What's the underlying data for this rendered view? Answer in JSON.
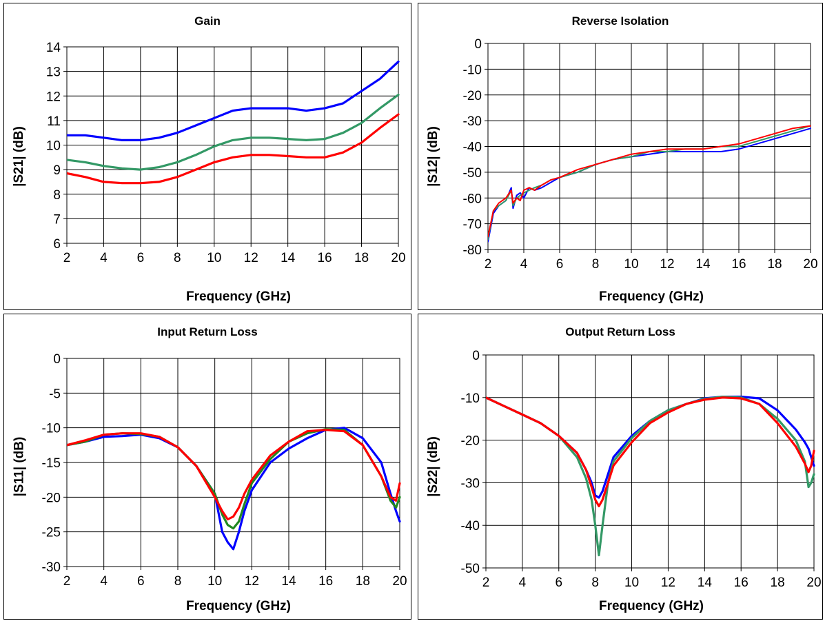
{
  "chart_data": [
    {
      "type": "line",
      "title": "Gain",
      "xlabel": "Frequency (GHz)",
      "ylabel": "|S21| (dB)",
      "xlim": [
        2,
        20
      ],
      "ylim": [
        6,
        14
      ],
      "xticks": [
        2,
        4,
        6,
        8,
        10,
        12,
        14,
        16,
        18,
        20
      ],
      "yticks": [
        6,
        7,
        8,
        9,
        10,
        11,
        12,
        13,
        14
      ],
      "grid": true,
      "x": [
        2,
        3,
        4,
        5,
        6,
        7,
        8,
        9,
        10,
        11,
        12,
        13,
        14,
        15,
        16,
        17,
        18,
        19,
        20
      ],
      "series": [
        {
          "color": "#0000ff",
          "values": [
            10.4,
            10.4,
            10.3,
            10.2,
            10.2,
            10.3,
            10.5,
            10.8,
            11.1,
            11.4,
            11.5,
            11.5,
            11.5,
            11.4,
            11.5,
            11.7,
            12.2,
            12.7,
            13.4
          ]
        },
        {
          "color": "#339966",
          "values": [
            9.4,
            9.3,
            9.15,
            9.05,
            9.0,
            9.1,
            9.3,
            9.6,
            9.95,
            10.2,
            10.3,
            10.3,
            10.25,
            10.2,
            10.25,
            10.5,
            10.9,
            11.5,
            12.05
          ]
        },
        {
          "color": "#ff0000",
          "values": [
            8.85,
            8.7,
            8.5,
            8.45,
            8.45,
            8.5,
            8.7,
            9.0,
            9.3,
            9.5,
            9.6,
            9.6,
            9.55,
            9.5,
            9.5,
            9.7,
            10.1,
            10.7,
            11.25
          ]
        }
      ]
    },
    {
      "type": "line",
      "title": "Reverse Isolation",
      "xlabel": "Frequency (GHz)",
      "ylabel": "|S12| (dB)",
      "xlim": [
        2,
        20
      ],
      "ylim": [
        -80,
        0
      ],
      "xticks": [
        2,
        4,
        6,
        8,
        10,
        12,
        14,
        16,
        18,
        20
      ],
      "yticks": [
        -80,
        -70,
        -60,
        -50,
        -40,
        -30,
        -20,
        -10,
        0
      ],
      "grid": true,
      "x": [
        2,
        2.3,
        2.6,
        3.0,
        3.3,
        3.4,
        3.6,
        3.8,
        4.0,
        4.3,
        4.6,
        5.0,
        5.5,
        6.0,
        7.0,
        8.0,
        9.0,
        10.0,
        11.0,
        12.0,
        13.0,
        14.0,
        15.0,
        16.0,
        17.0,
        18.0,
        19.0,
        20.0
      ],
      "series": [
        {
          "color": "#0000ff",
          "values": [
            -77,
            -66,
            -63,
            -61,
            -56,
            -64,
            -59,
            -58,
            -60,
            -56,
            -57,
            -56,
            -54,
            -52,
            -50,
            -47,
            -45,
            -44,
            -43,
            -42,
            -42,
            -42,
            -42,
            -41,
            -39,
            -37,
            -35,
            -33
          ]
        },
        {
          "color": "#339966",
          "values": [
            -76,
            -65,
            -63,
            -61,
            -57,
            -63,
            -60,
            -59,
            -58,
            -57,
            -56,
            -55,
            -53,
            -52,
            -50,
            -47,
            -45,
            -44,
            -42,
            -42,
            -41,
            -41,
            -40,
            -40,
            -38,
            -36,
            -34,
            -32
          ]
        },
        {
          "color": "#ff0000",
          "values": [
            -75,
            -65,
            -62,
            -60,
            -57,
            -62,
            -60,
            -61,
            -57,
            -56,
            -57,
            -55,
            -53,
            -52,
            -49,
            -47,
            -45,
            -43,
            -42,
            -41,
            -41,
            -41,
            -40,
            -39,
            -37,
            -35,
            -33,
            -32
          ]
        }
      ]
    },
    {
      "type": "line",
      "title": "Input Return Loss",
      "xlabel": "Frequency (GHz)",
      "ylabel": "|S11| (dB)",
      "xlim": [
        2,
        20
      ],
      "ylim": [
        -30,
        0
      ],
      "xticks": [
        2,
        4,
        6,
        8,
        10,
        12,
        14,
        16,
        18,
        20
      ],
      "yticks": [
        -30,
        -25,
        -20,
        -15,
        -10,
        -5,
        0
      ],
      "grid": true,
      "x": [
        2,
        3,
        4,
        5,
        6,
        7,
        8,
        9,
        10,
        10.4,
        10.7,
        11.0,
        11.3,
        11.6,
        12,
        13,
        14,
        15,
        16,
        17,
        18,
        19,
        19.5,
        19.8,
        20
      ],
      "series": [
        {
          "color": "#0000ff",
          "values": [
            -12.5,
            -12.0,
            -11.3,
            -11.2,
            -11.0,
            -11.5,
            -12.8,
            -15.5,
            -19.5,
            -25.0,
            -26.5,
            -27.5,
            -25.0,
            -22.0,
            -19.0,
            -15.0,
            -13.0,
            -11.5,
            -10.3,
            -10.0,
            -11.5,
            -15.0,
            -19.5,
            -22.0,
            -23.5
          ]
        },
        {
          "color": "#228822",
          "values": [
            -12.5,
            -12.0,
            -11.0,
            -10.8,
            -10.9,
            -11.3,
            -12.8,
            -15.5,
            -19.5,
            -22.5,
            -24.0,
            -24.5,
            -23.5,
            -21.0,
            -18.0,
            -14.5,
            -12.0,
            -10.8,
            -10.2,
            -10.3,
            -12.5,
            -17.0,
            -20.5,
            -21.5,
            -20.0
          ]
        },
        {
          "color": "#ff0000",
          "values": [
            -12.5,
            -11.8,
            -11.0,
            -10.8,
            -10.8,
            -11.3,
            -12.8,
            -15.5,
            -20.0,
            -22.0,
            -23.2,
            -22.8,
            -21.5,
            -19.5,
            -17.5,
            -14.0,
            -12.0,
            -10.5,
            -10.3,
            -10.5,
            -12.5,
            -17.0,
            -20.0,
            -20.5,
            -18.0
          ]
        }
      ]
    },
    {
      "type": "line",
      "title": "Output Return Loss",
      "xlabel": "Frequency (GHz)",
      "ylabel": "|S22| (dB)",
      "xlim": [
        2,
        20
      ],
      "ylim": [
        -50,
        0
      ],
      "xticks": [
        2,
        4,
        6,
        8,
        10,
        12,
        14,
        16,
        18,
        20
      ],
      "yticks": [
        -50,
        -40,
        -30,
        -20,
        -10,
        0
      ],
      "grid": true,
      "x": [
        2,
        3,
        4,
        5,
        6,
        7,
        7.5,
        7.8,
        8.0,
        8.2,
        8.4,
        8.7,
        9.0,
        10.0,
        11.0,
        12.0,
        13.0,
        14.0,
        15.0,
        16.0,
        17.0,
        18.0,
        19.0,
        19.5,
        19.7,
        19.85,
        20.0
      ],
      "series": [
        {
          "color": "#0000ff",
          "values": [
            -10,
            -12,
            -14,
            -16,
            -19,
            -23,
            -27,
            -30,
            -33,
            -33.5,
            -32,
            -28,
            -24,
            -19,
            -15.5,
            -13,
            -11.5,
            -10.2,
            -9.8,
            -9.8,
            -10.2,
            -13,
            -17.5,
            -20.5,
            -22,
            -24,
            -26
          ]
        },
        {
          "color": "#339966",
          "values": [
            -10,
            -12,
            -14,
            -16,
            -19,
            -24,
            -29,
            -34,
            -40,
            -47,
            -40,
            -30,
            -25,
            -19.5,
            -15.5,
            -13,
            -11.5,
            -10.3,
            -9.8,
            -10,
            -11.5,
            -15,
            -20,
            -25,
            -31,
            -30,
            -28
          ]
        },
        {
          "color": "#ff0000",
          "values": [
            -10,
            -12,
            -14,
            -16,
            -19,
            -23,
            -27,
            -31,
            -34,
            -35.5,
            -34,
            -30,
            -26,
            -20.5,
            -16,
            -13.5,
            -11.5,
            -10.5,
            -10,
            -10.2,
            -11.5,
            -16,
            -21.5,
            -25.5,
            -27.5,
            -26,
            -22.5
          ]
        }
      ]
    }
  ]
}
